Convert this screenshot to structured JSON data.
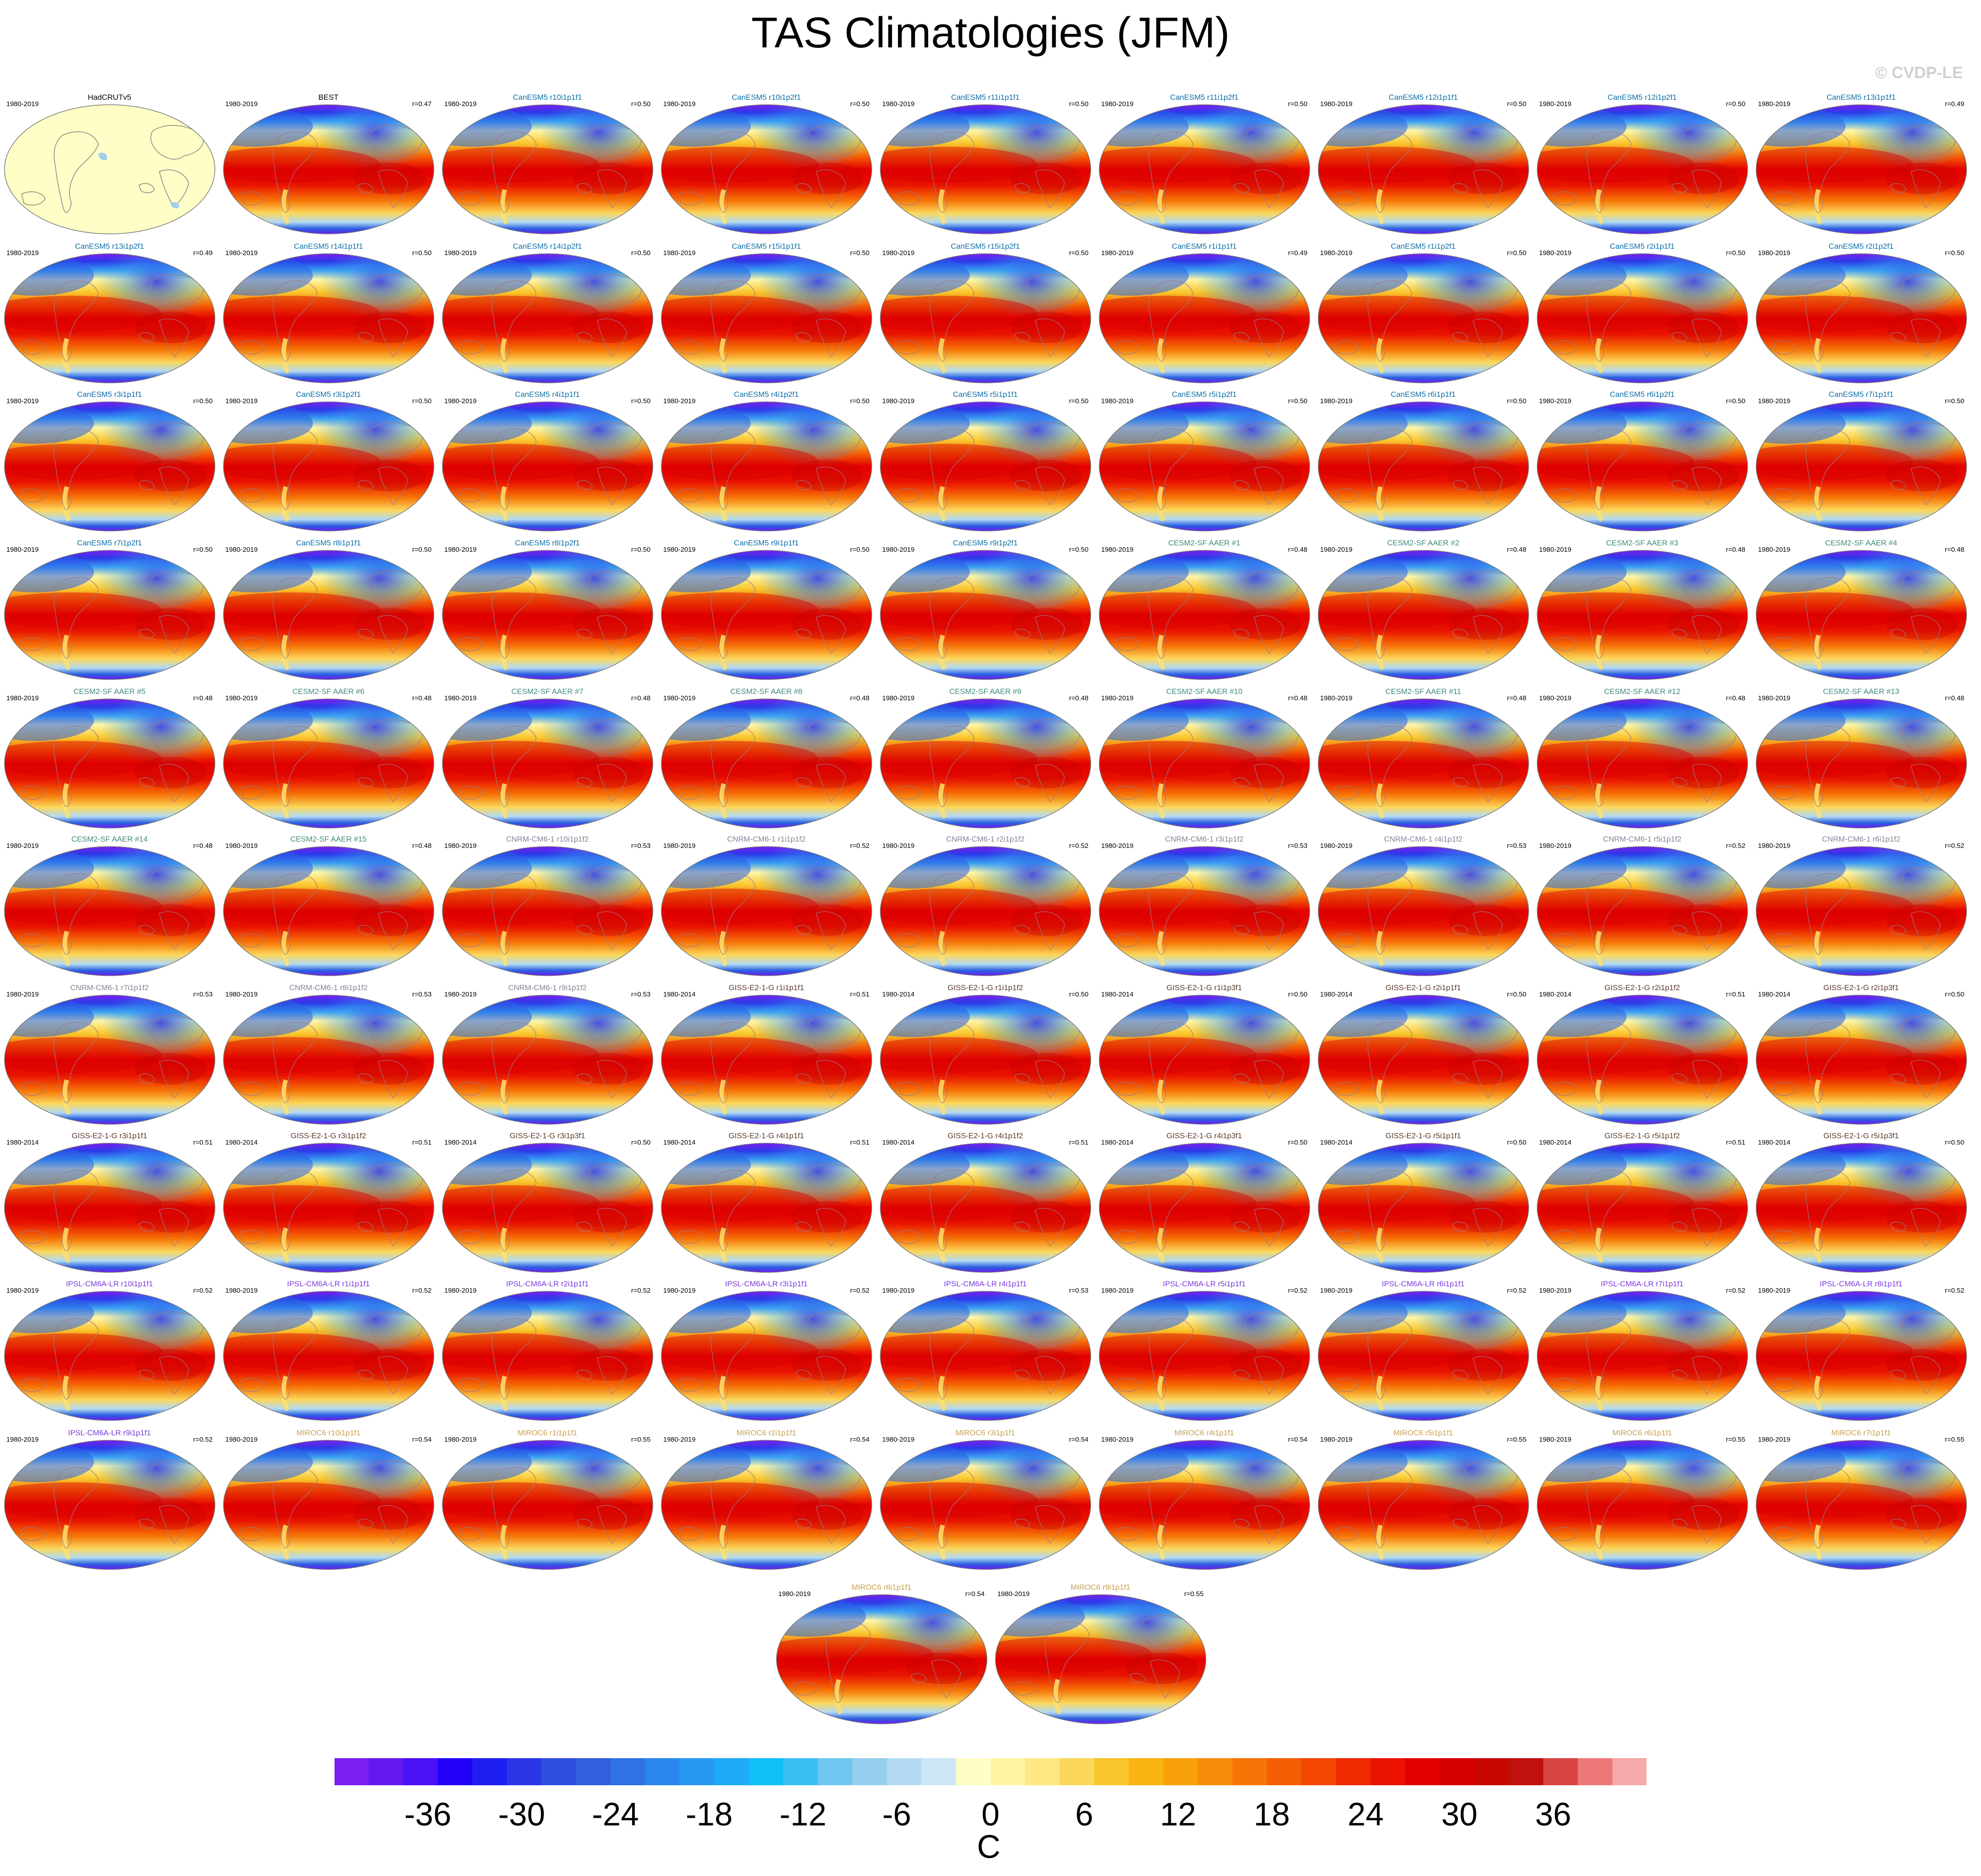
{
  "title": "TAS Climatologies (JFM)",
  "watermark": "© CVDP-LE",
  "chart_data": {
    "type": "heatmap",
    "description_type": "map-panel-grid",
    "colorbar": {
      "unit": "C",
      "ticks": [
        -36,
        -30,
        -24,
        -18,
        -12,
        -6,
        0,
        6,
        12,
        18,
        24,
        30,
        36
      ],
      "tick_labels": [
        "-36",
        "-30",
        "-24",
        "-18",
        "-12",
        "-6",
        "0",
        "6",
        "12",
        "18",
        "24",
        "30",
        "36"
      ],
      "range": [
        -42,
        42
      ],
      "colors": [
        "#7a1fef",
        "#6618f0",
        "#4a10f6",
        "#2200f8",
        "#1e1ef0",
        "#2a36e6",
        "#2f4fe0",
        "#3060dc",
        "#2e72e4",
        "#2a86ec",
        "#2898f2",
        "#1eaaf6",
        "#10bff8",
        "#3cc0f4",
        "#6ec8f0",
        "#96d0ee",
        "#b2daf4",
        "#cce6f8",
        "#fefec6",
        "#fef6a4",
        "#fde884",
        "#fbd85c",
        "#f9c62c",
        "#f8b410",
        "#f8a00a",
        "#f78c08",
        "#f67406",
        "#f45e04",
        "#f34602",
        "#f02a00",
        "#ec1200",
        "#e40000",
        "#d60000",
        "#c80800",
        "#c01010",
        "#d84444",
        "#ee7878",
        "#f7a8a8"
      ]
    },
    "panels": [
      {
        "name": "HadCRUTv5",
        "years": "1980-2019",
        "r": "",
        "color": "#000000",
        "kind": "obs"
      },
      {
        "name": "BEST",
        "years": "1980-2019",
        "r": "r=0.47",
        "color": "#000000",
        "kind": "obs-full"
      },
      {
        "name": "CanESM5 r10i1p1f1",
        "years": "1980-2019",
        "r": "r=0.50",
        "color": "#0a6ea8",
        "kind": "model"
      },
      {
        "name": "CanESM5 r10i1p2f1",
        "years": "1980-2019",
        "r": "r=0.50",
        "color": "#0a6ea8",
        "kind": "model"
      },
      {
        "name": "CanESM5 r11i1p1f1",
        "years": "1980-2019",
        "r": "r=0.50",
        "color": "#0a6ea8",
        "kind": "model"
      },
      {
        "name": "CanESM5 r11i1p2f1",
        "years": "1980-2019",
        "r": "r=0.50",
        "color": "#0a6ea8",
        "kind": "model"
      },
      {
        "name": "CanESM5 r12i1p1f1",
        "years": "1980-2019",
        "r": "r=0.50",
        "color": "#0a6ea8",
        "kind": "model"
      },
      {
        "name": "CanESM5 r12i1p2f1",
        "years": "1980-2019",
        "r": "r=0.50",
        "color": "#0a6ea8",
        "kind": "model"
      },
      {
        "name": "CanESM5 r13i1p1f1",
        "years": "1980-2019",
        "r": "r=0.49",
        "color": "#0a6ea8",
        "kind": "model"
      },
      {
        "name": "CanESM5 r13i1p2f1",
        "years": "1980-2019",
        "r": "r=0.49",
        "color": "#0a6ea8",
        "kind": "model"
      },
      {
        "name": "CanESM5 r14i1p1f1",
        "years": "1980-2019",
        "r": "r=0.50",
        "color": "#0a6ea8",
        "kind": "model"
      },
      {
        "name": "CanESM5 r14i1p2f1",
        "years": "1980-2019",
        "r": "r=0.50",
        "color": "#0a6ea8",
        "kind": "model"
      },
      {
        "name": "CanESM5 r15i1p1f1",
        "years": "1980-2019",
        "r": "r=0.50",
        "color": "#0a6ea8",
        "kind": "model"
      },
      {
        "name": "CanESM5 r15i1p2f1",
        "years": "1980-2019",
        "r": "r=0.50",
        "color": "#0a6ea8",
        "kind": "model"
      },
      {
        "name": "CanESM5 r1i1p1f1",
        "years": "1980-2019",
        "r": "r=0.49",
        "color": "#0a6ea8",
        "kind": "model"
      },
      {
        "name": "CanESM5 r1i1p2f1",
        "years": "1980-2019",
        "r": "r=0.50",
        "color": "#0a6ea8",
        "kind": "model"
      },
      {
        "name": "CanESM5 r2i1p1f1",
        "years": "1980-2019",
        "r": "r=0.50",
        "color": "#0a6ea8",
        "kind": "model"
      },
      {
        "name": "CanESM5 r2i1p2f1",
        "years": "1980-2019",
        "r": "r=0.50",
        "color": "#0a6ea8",
        "kind": "model"
      },
      {
        "name": "CanESM5 r3i1p1f1",
        "years": "1980-2019",
        "r": "r=0.50",
        "color": "#0a6ea8",
        "kind": "model"
      },
      {
        "name": "CanESM5 r3i1p2f1",
        "years": "1980-2019",
        "r": "r=0.50",
        "color": "#0a6ea8",
        "kind": "model"
      },
      {
        "name": "CanESM5 r4i1p1f1",
        "years": "1980-2019",
        "r": "r=0.50",
        "color": "#0a6ea8",
        "kind": "model"
      },
      {
        "name": "CanESM5 r4i1p2f1",
        "years": "1980-2019",
        "r": "r=0.50",
        "color": "#0a6ea8",
        "kind": "model"
      },
      {
        "name": "CanESM5 r5i1p1f1",
        "years": "1980-2019",
        "r": "r=0.50",
        "color": "#0a6ea8",
        "kind": "model"
      },
      {
        "name": "CanESM5 r5i1p2f1",
        "years": "1980-2019",
        "r": "r=0.50",
        "color": "#0a6ea8",
        "kind": "model"
      },
      {
        "name": "CanESM5 r6i1p1f1",
        "years": "1980-2019",
        "r": "r=0.50",
        "color": "#0a6ea8",
        "kind": "model"
      },
      {
        "name": "CanESM5 r6i1p2f1",
        "years": "1980-2019",
        "r": "r=0.50",
        "color": "#0a6ea8",
        "kind": "model"
      },
      {
        "name": "CanESM5 r7i1p1f1",
        "years": "1980-2019",
        "r": "r=0.50",
        "color": "#0a6ea8",
        "kind": "model"
      },
      {
        "name": "CanESM5 r7i1p2f1",
        "years": "1980-2019",
        "r": "r=0.50",
        "color": "#0a6ea8",
        "kind": "model"
      },
      {
        "name": "CanESM5 r8i1p1f1",
        "years": "1980-2019",
        "r": "r=0.50",
        "color": "#0a6ea8",
        "kind": "model"
      },
      {
        "name": "CanESM5 r8i1p2f1",
        "years": "1980-2019",
        "r": "r=0.50",
        "color": "#0a6ea8",
        "kind": "model"
      },
      {
        "name": "CanESM5 r9i1p1f1",
        "years": "1980-2019",
        "r": "r=0.50",
        "color": "#0a6ea8",
        "kind": "model"
      },
      {
        "name": "CanESM5 r9i1p2f1",
        "years": "1980-2019",
        "r": "r=0.50",
        "color": "#0a6ea8",
        "kind": "model"
      },
      {
        "name": "CESM2-SF AAER #1",
        "years": "1980-2019",
        "r": "r=0.48",
        "color": "#3e8a7e",
        "kind": "model"
      },
      {
        "name": "CESM2-SF AAER #2",
        "years": "1980-2019",
        "r": "r=0.48",
        "color": "#3e8a7e",
        "kind": "model"
      },
      {
        "name": "CESM2-SF AAER #3",
        "years": "1980-2019",
        "r": "r=0.48",
        "color": "#3e8a7e",
        "kind": "model"
      },
      {
        "name": "CESM2-SF AAER #4",
        "years": "1980-2019",
        "r": "r=0.48",
        "color": "#3e8a7e",
        "kind": "model"
      },
      {
        "name": "CESM2-SF AAER #5",
        "years": "1980-2019",
        "r": "r=0.48",
        "color": "#3e8a7e",
        "kind": "model"
      },
      {
        "name": "CESM2-SF AAER #6",
        "years": "1980-2019",
        "r": "r=0.48",
        "color": "#3e8a7e",
        "kind": "model"
      },
      {
        "name": "CESM2-SF AAER #7",
        "years": "1980-2019",
        "r": "r=0.48",
        "color": "#3e8a7e",
        "kind": "model"
      },
      {
        "name": "CESM2-SF AAER #8",
        "years": "1980-2019",
        "r": "r=0.48",
        "color": "#3e8a7e",
        "kind": "model"
      },
      {
        "name": "CESM2-SF AAER #9",
        "years": "1980-2019",
        "r": "r=0.48",
        "color": "#3e8a7e",
        "kind": "model"
      },
      {
        "name": "CESM2-SF AAER #10",
        "years": "1980-2019",
        "r": "r=0.48",
        "color": "#3e8a7e",
        "kind": "model"
      },
      {
        "name": "CESM2-SF AAER #11",
        "years": "1980-2019",
        "r": "r=0.48",
        "color": "#3e8a7e",
        "kind": "model"
      },
      {
        "name": "CESM2-SF AAER #12",
        "years": "1980-2019",
        "r": "r=0.48",
        "color": "#3e8a7e",
        "kind": "model"
      },
      {
        "name": "CESM2-SF AAER #13",
        "years": "1980-2019",
        "r": "r=0.48",
        "color": "#3e8a7e",
        "kind": "model"
      },
      {
        "name": "CESM2-SF AAER #14",
        "years": "1980-2019",
        "r": "r=0.48",
        "color": "#3e8a7e",
        "kind": "model"
      },
      {
        "name": "CESM2-SF AAER #15",
        "years": "1980-2019",
        "r": "r=0.48",
        "color": "#3e8a7e",
        "kind": "model"
      },
      {
        "name": "CNRM-CM6-1 r10i1p1f2",
        "years": "1980-2019",
        "r": "r=0.53",
        "color": "#8a7f96",
        "kind": "model"
      },
      {
        "name": "CNRM-CM6-1 r1i1p1f2",
        "years": "1980-2019",
        "r": "r=0.52",
        "color": "#8a7f96",
        "kind": "model"
      },
      {
        "name": "CNRM-CM6-1 r2i1p1f2",
        "years": "1980-2019",
        "r": "r=0.52",
        "color": "#8a7f96",
        "kind": "model"
      },
      {
        "name": "CNRM-CM6-1 r3i1p1f2",
        "years": "1980-2019",
        "r": "r=0.53",
        "color": "#8a7f96",
        "kind": "model"
      },
      {
        "name": "CNRM-CM6-1 r4i1p1f2",
        "years": "1980-2019",
        "r": "r=0.53",
        "color": "#8a7f96",
        "kind": "model"
      },
      {
        "name": "CNRM-CM6-1 r5i1p1f2",
        "years": "1980-2019",
        "r": "r=0.52",
        "color": "#8a7f96",
        "kind": "model"
      },
      {
        "name": "CNRM-CM6-1 r6i1p1f2",
        "years": "1980-2019",
        "r": "r=0.52",
        "color": "#8a7f96",
        "kind": "model"
      },
      {
        "name": "CNRM-CM6-1 r7i1p1f2",
        "years": "1980-2019",
        "r": "r=0.53",
        "color": "#8a7f96",
        "kind": "model"
      },
      {
        "name": "CNRM-CM6-1 r8i1p1f2",
        "years": "1980-2019",
        "r": "r=0.53",
        "color": "#8a7f96",
        "kind": "model"
      },
      {
        "name": "CNRM-CM6-1 r9i1p1f2",
        "years": "1980-2019",
        "r": "r=0.53",
        "color": "#8a7f96",
        "kind": "model"
      },
      {
        "name": "GISS-E2-1-G r1i1p1f1",
        "years": "1980-2014",
        "r": "r=0.51",
        "color": "#5a3a2a",
        "kind": "model"
      },
      {
        "name": "GISS-E2-1-G r1i1p1f2",
        "years": "1980-2014",
        "r": "r=0.50",
        "color": "#5a3a2a",
        "kind": "model"
      },
      {
        "name": "GISS-E2-1-G r1i1p3f1",
        "years": "1980-2014",
        "r": "r=0.50",
        "color": "#5a3a2a",
        "kind": "model"
      },
      {
        "name": "GISS-E2-1-G r2i1p1f1",
        "years": "1980-2014",
        "r": "r=0.50",
        "color": "#5a3a2a",
        "kind": "model"
      },
      {
        "name": "GISS-E2-1-G r2i1p1f2",
        "years": "1980-2014",
        "r": "r=0.51",
        "color": "#5a3a2a",
        "kind": "model"
      },
      {
        "name": "GISS-E2-1-G r2i1p3f1",
        "years": "1980-2014",
        "r": "r=0.50",
        "color": "#5a3a2a",
        "kind": "model"
      },
      {
        "name": "GISS-E2-1-G r3i1p1f1",
        "years": "1980-2014",
        "r": "r=0.51",
        "color": "#5a3a2a",
        "kind": "model"
      },
      {
        "name": "GISS-E2-1-G r3i1p1f2",
        "years": "1980-2014",
        "r": "r=0.51",
        "color": "#5a3a2a",
        "kind": "model"
      },
      {
        "name": "GISS-E2-1-G r3i1p3f1",
        "years": "1980-2014",
        "r": "r=0.50",
        "color": "#5a3a2a",
        "kind": "model"
      },
      {
        "name": "GISS-E2-1-G r4i1p1f1",
        "years": "1980-2014",
        "r": "r=0.51",
        "color": "#5a3a2a",
        "kind": "model"
      },
      {
        "name": "GISS-E2-1-G r4i1p1f2",
        "years": "1980-2014",
        "r": "r=0.51",
        "color": "#5a3a2a",
        "kind": "model"
      },
      {
        "name": "GISS-E2-1-G r4i1p3f1",
        "years": "1980-2014",
        "r": "r=0.50",
        "color": "#5a3a2a",
        "kind": "model"
      },
      {
        "name": "GISS-E2-1-G r5i1p1f1",
        "years": "1980-2014",
        "r": "r=0.50",
        "color": "#5a3a2a",
        "kind": "model"
      },
      {
        "name": "GISS-E2-1-G r5i1p1f2",
        "years": "1980-2014",
        "r": "r=0.51",
        "color": "#5a3a2a",
        "kind": "model"
      },
      {
        "name": "GISS-E2-1-G r5i1p3f1",
        "years": "1980-2014",
        "r": "r=0.50",
        "color": "#5a3a2a",
        "kind": "model"
      },
      {
        "name": "IPSL-CM6A-LR r10i1p1f1",
        "years": "1980-2019",
        "r": "r=0.52",
        "color": "#7a3ae0",
        "kind": "model"
      },
      {
        "name": "IPSL-CM6A-LR r1i1p1f1",
        "years": "1980-2019",
        "r": "r=0.52",
        "color": "#7a3ae0",
        "kind": "model"
      },
      {
        "name": "IPSL-CM6A-LR r2i1p1f1",
        "years": "1980-2019",
        "r": "r=0.52",
        "color": "#7a3ae0",
        "kind": "model"
      },
      {
        "name": "IPSL-CM6A-LR r3i1p1f1",
        "years": "1980-2019",
        "r": "r=0.52",
        "color": "#7a3ae0",
        "kind": "model"
      },
      {
        "name": "IPSL-CM6A-LR r4i1p1f1",
        "years": "1980-2019",
        "r": "r=0.53",
        "color": "#7a3ae0",
        "kind": "model"
      },
      {
        "name": "IPSL-CM6A-LR r5i1p1f1",
        "years": "1980-2019",
        "r": "r=0.52",
        "color": "#7a3ae0",
        "kind": "model"
      },
      {
        "name": "IPSL-CM6A-LR r6i1p1f1",
        "years": "1980-2019",
        "r": "r=0.52",
        "color": "#7a3ae0",
        "kind": "model"
      },
      {
        "name": "IPSL-CM6A-LR r7i1p1f1",
        "years": "1980-2019",
        "r": "r=0.52",
        "color": "#7a3ae0",
        "kind": "model"
      },
      {
        "name": "IPSL-CM6A-LR r8i1p1f1",
        "years": "1980-2019",
        "r": "r=0.52",
        "color": "#7a3ae0",
        "kind": "model"
      },
      {
        "name": "IPSL-CM6A-LR r9i1p1f1",
        "years": "1980-2019",
        "r": "r=0.52",
        "color": "#7a3ae0",
        "kind": "model"
      },
      {
        "name": "MIROC6 r10i1p1f1",
        "years": "1980-2019",
        "r": "r=0.54",
        "color": "#c8a050",
        "kind": "model"
      },
      {
        "name": "MIROC6 r1i1p1f1",
        "years": "1980-2019",
        "r": "r=0.55",
        "color": "#c8a050",
        "kind": "model"
      },
      {
        "name": "MIROC6 r2i1p1f1",
        "years": "1980-2019",
        "r": "r=0.54",
        "color": "#c8a050",
        "kind": "model"
      },
      {
        "name": "MIROC6 r3i1p1f1",
        "years": "1980-2019",
        "r": "r=0.54",
        "color": "#c8a050",
        "kind": "model"
      },
      {
        "name": "MIROC6 r4i1p1f1",
        "years": "1980-2019",
        "r": "r=0.54",
        "color": "#c8a050",
        "kind": "model"
      },
      {
        "name": "MIROC6 r5i1p1f1",
        "years": "1980-2019",
        "r": "r=0.55",
        "color": "#c8a050",
        "kind": "model"
      },
      {
        "name": "MIROC6 r6i1p1f1",
        "years": "1980-2019",
        "r": "r=0.55",
        "color": "#c8a050",
        "kind": "model"
      },
      {
        "name": "MIROC6 r7i1p1f1",
        "years": "1980-2019",
        "r": "r=0.55",
        "color": "#c8a050",
        "kind": "model"
      },
      {
        "name": "MIROC6 r8i1p1f1",
        "years": "1980-2019",
        "r": "r=0.54",
        "color": "#c8a050",
        "kind": "model"
      },
      {
        "name": "MIROC6 r9i1p1f1",
        "years": "1980-2019",
        "r": "r=0.55",
        "color": "#c8a050",
        "kind": "model"
      }
    ]
  }
}
